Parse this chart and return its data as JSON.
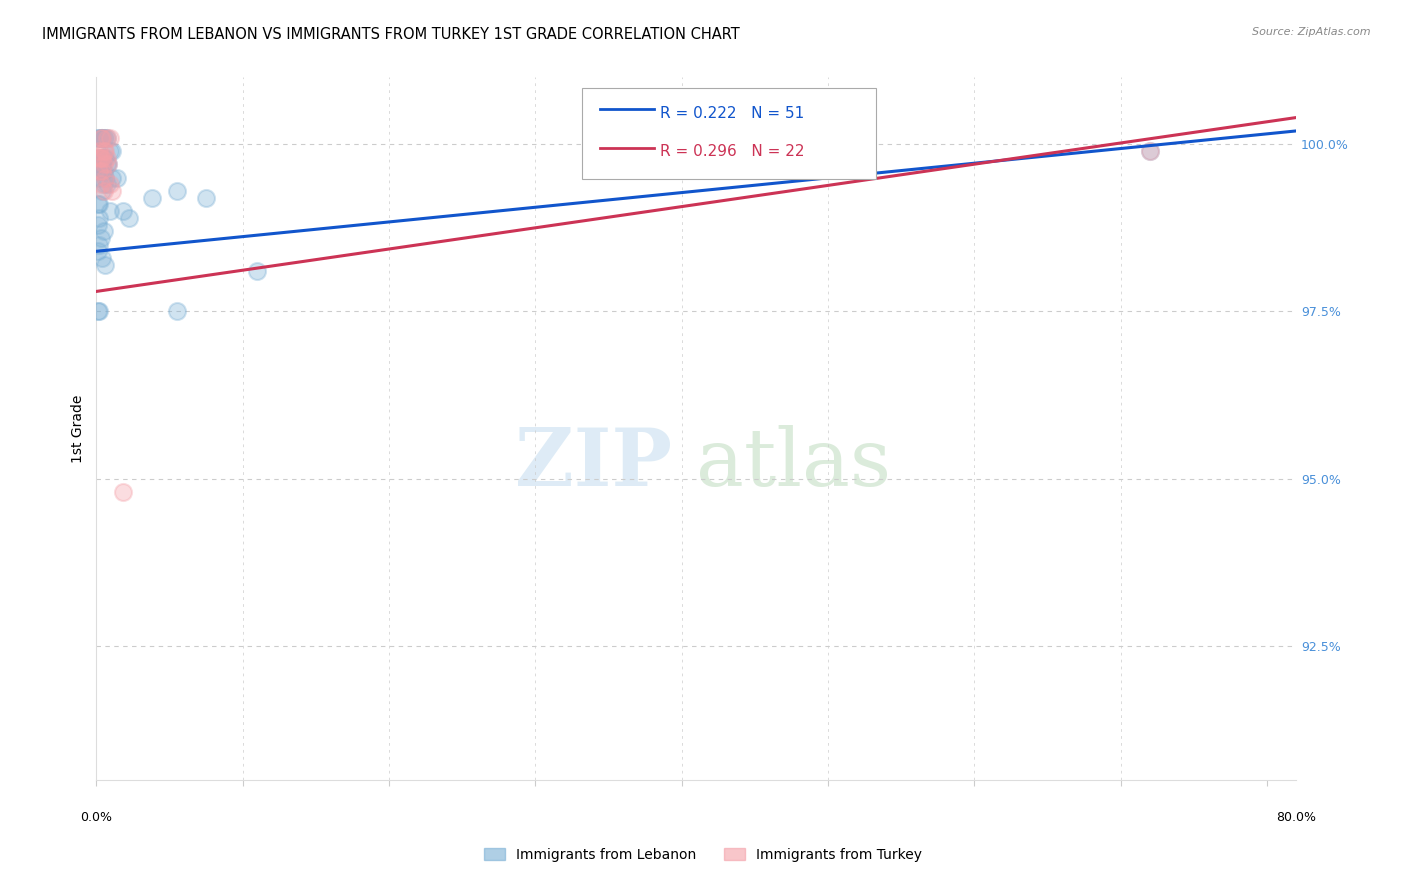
{
  "title": "IMMIGRANTS FROM LEBANON VS IMMIGRANTS FROM TURKEY 1ST GRADE CORRELATION CHART",
  "source": "Source: ZipAtlas.com",
  "ylabel": "1st Grade",
  "ytick_labels": [
    "100.0%",
    "97.5%",
    "95.0%",
    "92.5%"
  ],
  "ytick_values": [
    1.0,
    0.975,
    0.95,
    0.925
  ],
  "xlim": [
    0.0,
    0.82
  ],
  "ylim": [
    0.905,
    1.01
  ],
  "legend_blue_label": "Immigrants from Lebanon",
  "legend_pink_label": "Immigrants from Turkey",
  "R_blue": "R = 0.222",
  "N_blue": "N = 51",
  "R_pink": "R = 0.296",
  "N_pink": "N = 22",
  "blue_scatter_x": [
    0.001,
    0.003,
    0.004,
    0.005,
    0.002,
    0.007,
    0.004,
    0.006,
    0.009,
    0.011,
    0.002,
    0.003,
    0.005,
    0.006,
    0.004,
    0.003,
    0.007,
    0.008,
    0.002,
    0.001,
    0.005,
    0.004,
    0.003,
    0.006,
    0.002,
    0.011,
    0.014,
    0.005,
    0.007,
    0.004,
    0.055,
    0.075,
    0.038,
    0.001,
    0.002,
    0.009,
    0.018,
    0.022,
    0.002,
    0.001,
    0.005,
    0.003,
    0.002,
    0.001,
    0.004,
    0.006,
    0.11,
    0.001,
    0.002,
    0.055,
    0.72
  ],
  "blue_scatter_y": [
    1.001,
    1.001,
    1.001,
    1.001,
    1.001,
    1.001,
    1.001,
    1.001,
    0.999,
    0.999,
    0.998,
    0.998,
    0.998,
    0.998,
    0.997,
    0.997,
    0.997,
    0.997,
    0.997,
    0.996,
    0.996,
    0.996,
    0.996,
    0.995,
    0.995,
    0.995,
    0.995,
    0.994,
    0.994,
    0.993,
    0.993,
    0.992,
    0.992,
    0.991,
    0.991,
    0.99,
    0.99,
    0.989,
    0.989,
    0.988,
    0.987,
    0.986,
    0.985,
    0.984,
    0.983,
    0.982,
    0.981,
    0.975,
    0.975,
    0.975,
    0.999
  ],
  "pink_scatter_x": [
    0.002,
    0.004,
    0.007,
    0.009,
    0.003,
    0.005,
    0.006,
    0.002,
    0.007,
    0.004,
    0.003,
    0.005,
    0.008,
    0.002,
    0.004,
    0.006,
    0.009,
    0.003,
    0.011,
    0.005,
    0.72,
    0.018
  ],
  "pink_scatter_y": [
    0.999,
    1.001,
    1.001,
    1.001,
    1.001,
    0.999,
    0.999,
    0.998,
    0.998,
    0.998,
    0.998,
    0.997,
    0.997,
    0.996,
    0.996,
    0.995,
    0.994,
    0.994,
    0.993,
    0.993,
    0.999,
    0.948
  ],
  "blue_line_x": [
    0.0,
    0.82
  ],
  "blue_line_y": [
    0.984,
    1.002
  ],
  "pink_line_x": [
    0.0,
    0.82
  ],
  "pink_line_y": [
    0.978,
    1.004
  ],
  "blue_color": "#7bafd4",
  "pink_color": "#f4a0a8",
  "blue_line_color": "#1155cc",
  "pink_line_color": "#cc3355",
  "watermark_zip": "ZIP",
  "watermark_atlas": "atlas",
  "grid_color": "#cccccc",
  "title_fontsize": 10.5,
  "tick_fontsize": 9,
  "right_tick_color": "#4a90d9"
}
